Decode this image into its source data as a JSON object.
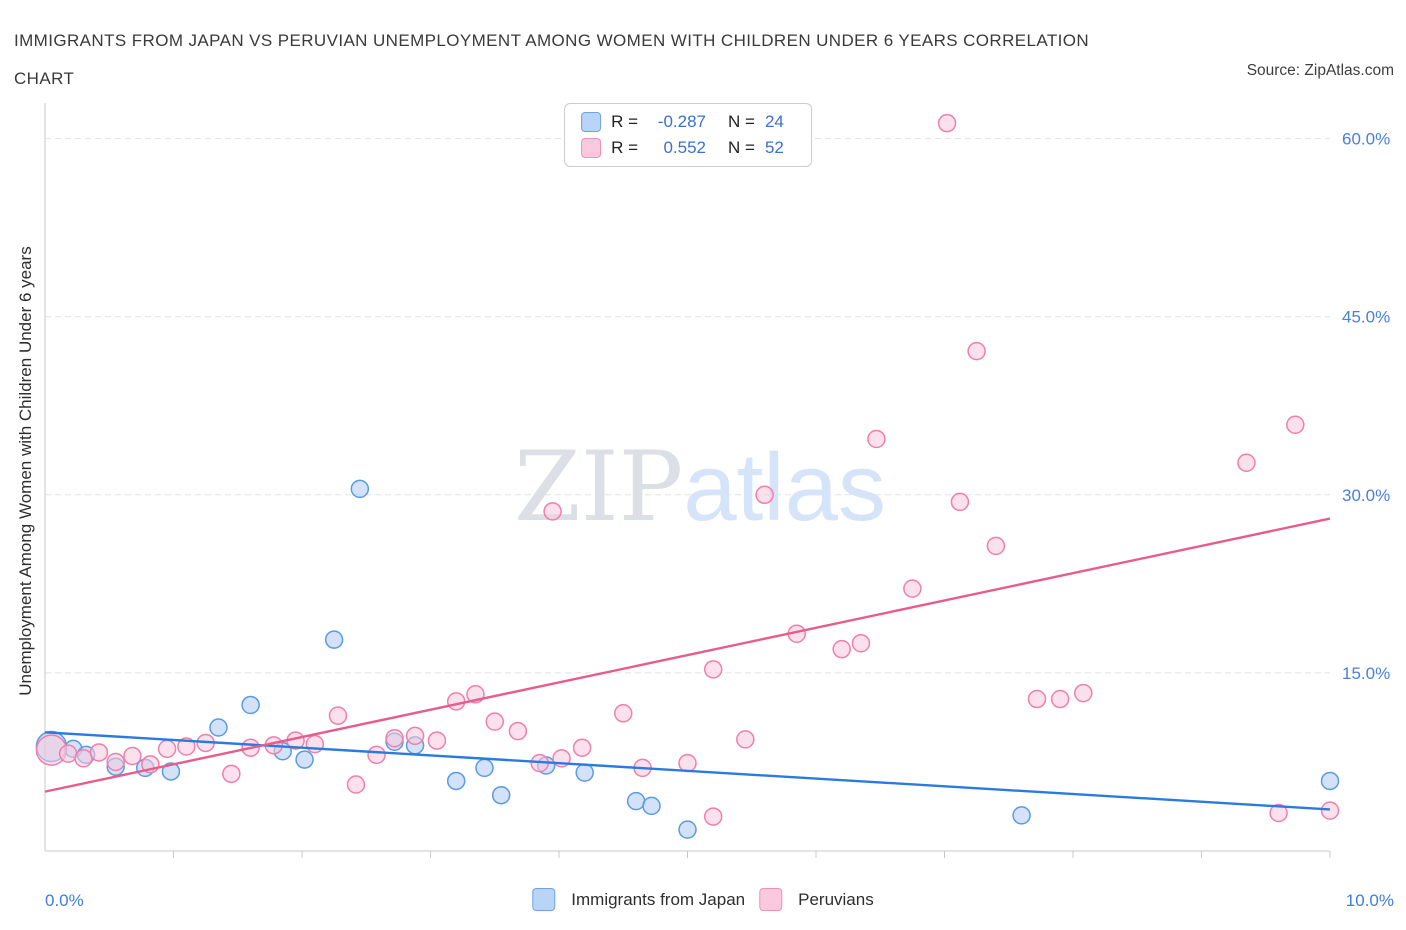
{
  "header": {
    "title_line1": "IMMIGRANTS FROM JAPAN VS PERUVIAN UNEMPLOYMENT AMONG WOMEN WITH CHILDREN UNDER 6 YEARS CORRELATION",
    "title_line2": "CHART",
    "source": "Source: ZipAtlas.com"
  },
  "watermark": {
    "part1": "ZIP",
    "part2": "atlas"
  },
  "axes": {
    "y_title": "Unemployment Among Women with Children Under 6 years",
    "x_min_label": "0.0%",
    "x_max_label": "10.0%",
    "y_tick_labels": [
      "60.0%",
      "45.0%",
      "30.0%",
      "15.0%"
    ]
  },
  "legend_box": {
    "rows": [
      {
        "series": "Immigrants from Japan",
        "r_label": "R =",
        "r_value": "-0.287",
        "n_label": "N =",
        "n_value": "24"
      },
      {
        "series": "Peruvians",
        "r_label": "R =",
        "r_value": "0.552",
        "n_label": "N =",
        "n_value": "52"
      }
    ]
  },
  "bottom_legend": [
    {
      "label": "Immigrants from Japan",
      "color": "#B8D4F6",
      "border": "#6FA3E8"
    },
    {
      "label": "Peruvians",
      "color": "#FBC9DD",
      "border": "#F190B4"
    }
  ],
  "colors": {
    "axis_label_blue": "#4a7fdb",
    "gridline": "#e2e2e2",
    "axis_line": "#c9c9c9",
    "japan_fill": "#AECBF4",
    "japan_stroke": "#5B9BE0",
    "japan_trend": "#2B7BDE",
    "peruvian_fill": "#F9C9DC",
    "peruvian_stroke": "#F07FAC",
    "peruvian_trend": "#E75C8D"
  },
  "chart_data": {
    "type": "scatter",
    "title": "Immigrants from Japan vs Peruvian Unemployment Among Women with Children Under 6 years",
    "xlabel": "Immigrants from Japan (%)",
    "ylabel": "Unemployment Among Women with Children Under 6 years",
    "xlim": [
      0,
      10
    ],
    "ylim": [
      0,
      63
    ],
    "grid": "horizontal-dashed",
    "legend_position": "top-center",
    "yticks": [
      {
        "v": 15,
        "label": "15.0%"
      },
      {
        "v": 30,
        "label": "30.0%"
      },
      {
        "v": 45,
        "label": "45.0%"
      },
      {
        "v": 60,
        "label": "60.0%"
      }
    ],
    "xticks": [
      1,
      2,
      3,
      4,
      5,
      6,
      7,
      8,
      9,
      10
    ],
    "series": [
      {
        "id": "japan",
        "name": "Immigrants from Japan",
        "R": -0.287,
        "N": 24,
        "fill": "#AECBF4",
        "stroke": "#5B9BE0",
        "trend_color": "#2B7BDE",
        "trend": {
          "x": [
            0,
            10
          ],
          "y": [
            10.0,
            3.5
          ]
        },
        "points": [
          [
            0.05,
            8.8,
            15
          ],
          [
            0.22,
            8.6
          ],
          [
            0.32,
            8.1
          ],
          [
            0.55,
            7.1
          ],
          [
            0.78,
            7.0
          ],
          [
            0.98,
            6.7
          ],
          [
            1.35,
            10.4
          ],
          [
            1.6,
            12.3
          ],
          [
            1.85,
            8.4
          ],
          [
            2.02,
            7.7
          ],
          [
            2.25,
            17.8
          ],
          [
            2.45,
            30.5
          ],
          [
            2.72,
            9.2
          ],
          [
            2.88,
            8.9
          ],
          [
            3.2,
            5.9
          ],
          [
            3.42,
            7.0
          ],
          [
            3.55,
            4.7
          ],
          [
            3.9,
            7.2
          ],
          [
            4.2,
            6.6
          ],
          [
            4.6,
            4.2
          ],
          [
            4.72,
            3.8
          ],
          [
            5.0,
            1.8
          ],
          [
            7.6,
            3.0
          ],
          [
            10.0,
            5.9
          ]
        ]
      },
      {
        "id": "peruvians",
        "name": "Peruvians",
        "R": 0.552,
        "N": 52,
        "fill": "#F9C9DC",
        "stroke": "#F07FAC",
        "trend_color": "#E75C8D",
        "trend": {
          "x": [
            0,
            10
          ],
          "y": [
            5.0,
            28.0
          ]
        },
        "points": [
          [
            0.05,
            8.5,
            15
          ],
          [
            0.18,
            8.2
          ],
          [
            0.3,
            7.8
          ],
          [
            0.42,
            8.3
          ],
          [
            0.55,
            7.5
          ],
          [
            0.68,
            8.0
          ],
          [
            0.82,
            7.3
          ],
          [
            0.95,
            8.6
          ],
          [
            1.1,
            8.8
          ],
          [
            1.25,
            9.1
          ],
          [
            1.45,
            6.5
          ],
          [
            1.6,
            8.7
          ],
          [
            1.78,
            8.9
          ],
          [
            1.95,
            9.3
          ],
          [
            2.1,
            9.0
          ],
          [
            2.28,
            11.4
          ],
          [
            2.42,
            5.6
          ],
          [
            2.58,
            8.1
          ],
          [
            2.72,
            9.5
          ],
          [
            2.88,
            9.7
          ],
          [
            3.05,
            9.3
          ],
          [
            3.2,
            12.6
          ],
          [
            3.35,
            13.2
          ],
          [
            3.5,
            10.9
          ],
          [
            3.68,
            10.1
          ],
          [
            3.85,
            7.4
          ],
          [
            3.95,
            28.6
          ],
          [
            4.02,
            7.8
          ],
          [
            4.18,
            8.7
          ],
          [
            4.5,
            11.6
          ],
          [
            4.65,
            7.0
          ],
          [
            5.0,
            7.4
          ],
          [
            5.2,
            2.9
          ],
          [
            5.2,
            15.3
          ],
          [
            5.45,
            9.4
          ],
          [
            5.6,
            30.0
          ],
          [
            5.85,
            18.3
          ],
          [
            6.2,
            17.0
          ],
          [
            6.35,
            17.5
          ],
          [
            6.47,
            34.7
          ],
          [
            6.75,
            22.1
          ],
          [
            7.02,
            61.3
          ],
          [
            7.12,
            29.4
          ],
          [
            7.25,
            42.1
          ],
          [
            7.4,
            25.7
          ],
          [
            7.72,
            12.8
          ],
          [
            7.9,
            12.8
          ],
          [
            8.08,
            13.3
          ],
          [
            9.35,
            32.7
          ],
          [
            9.6,
            3.2
          ],
          [
            9.73,
            35.9
          ],
          [
            10.0,
            3.4
          ]
        ]
      }
    ]
  }
}
